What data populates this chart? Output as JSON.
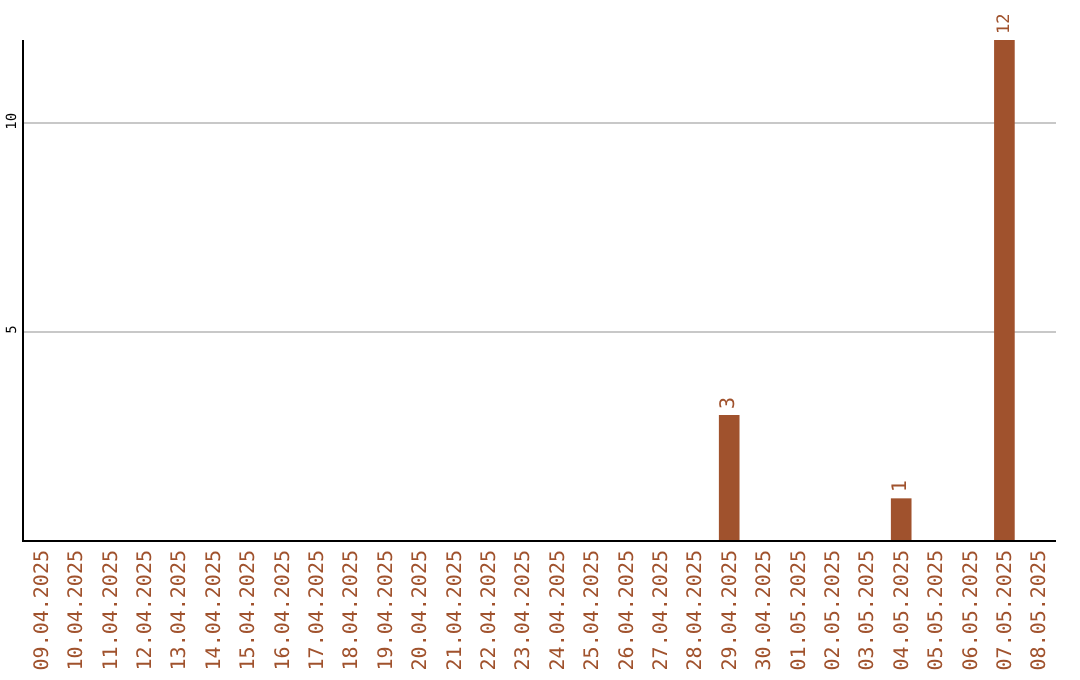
{
  "chart_data": {
    "type": "bar",
    "categories": [
      "09.04.2025",
      "10.04.2025",
      "11.04.2025",
      "12.04.2025",
      "13.04.2025",
      "14.04.2025",
      "15.04.2025",
      "16.04.2025",
      "17.04.2025",
      "18.04.2025",
      "19.04.2025",
      "20.04.2025",
      "21.04.2025",
      "22.04.2025",
      "23.04.2025",
      "24.04.2025",
      "25.04.2025",
      "26.04.2025",
      "27.04.2025",
      "28.04.2025",
      "29.04.2025",
      "30.04.2025",
      "01.05.2025",
      "02.05.2025",
      "03.05.2025",
      "04.05.2025",
      "05.05.2025",
      "06.05.2025",
      "07.05.2025",
      "08.05.2025"
    ],
    "values": [
      0,
      0,
      0,
      0,
      0,
      0,
      0,
      0,
      0,
      0,
      0,
      0,
      0,
      0,
      0,
      0,
      0,
      0,
      0,
      0,
      3,
      0,
      0,
      0,
      0,
      1,
      0,
      0,
      12,
      0
    ],
    "value_labels": [
      null,
      null,
      null,
      null,
      null,
      null,
      null,
      null,
      null,
      null,
      null,
      null,
      null,
      null,
      null,
      null,
      null,
      null,
      null,
      null,
      "3",
      null,
      null,
      null,
      null,
      "1",
      null,
      null,
      "12",
      null
    ],
    "color": "#a0522d",
    "ylim": [
      0,
      12
    ],
    "yticks": [
      5,
      10
    ],
    "grid": "y"
  }
}
